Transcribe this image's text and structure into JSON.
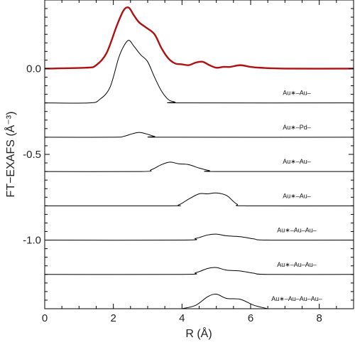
{
  "chart_data": {
    "type": "line",
    "xlabel": "R (Å)",
    "ylabel": "FT−EXAFS (Å⁻³)",
    "xlim": [
      0,
      9
    ],
    "ylim": [
      -1.4,
      0.4
    ],
    "x_ticks": [
      0,
      2,
      4,
      6,
      8
    ],
    "x_tick_labels": [
      "0",
      "2",
      "4",
      "6",
      "8"
    ],
    "y_ticks": [
      0.0,
      -0.5,
      -1.0
    ],
    "y_tick_labels": [
      "0.0",
      "-0.5",
      "-1.0"
    ],
    "grid": false,
    "series": [
      {
        "name": "",
        "color": "#b01010",
        "offset": 0.0,
        "points": [
          [
            0,
            0
          ],
          [
            1.2,
            0.005
          ],
          [
            1.5,
            0.02
          ],
          [
            1.8,
            0.09
          ],
          [
            2.1,
            0.25
          ],
          [
            2.3,
            0.34
          ],
          [
            2.45,
            0.355
          ],
          [
            2.6,
            0.31
          ],
          [
            2.75,
            0.27
          ],
          [
            2.95,
            0.24
          ],
          [
            3.2,
            0.2
          ],
          [
            3.4,
            0.12
          ],
          [
            3.6,
            0.06
          ],
          [
            3.8,
            0.03
          ],
          [
            4.0,
            0.025
          ],
          [
            4.2,
            0.02
          ],
          [
            4.4,
            0.035
          ],
          [
            4.6,
            0.04
          ],
          [
            4.8,
            0.02
          ],
          [
            5.0,
            0.005
          ],
          [
            5.2,
            0.01
          ],
          [
            5.4,
            0.01
          ],
          [
            5.7,
            0.02
          ],
          [
            6.0,
            0.01
          ],
          [
            6.3,
            0.005
          ],
          [
            7.0,
            0.0
          ],
          [
            9,
            0
          ]
        ]
      },
      {
        "name": "Au∗–Au–",
        "color": "#000000",
        "offset": -0.2,
        "points": [
          [
            0,
            0
          ],
          [
            1.3,
            0.0
          ],
          [
            1.6,
            0.02
          ],
          [
            1.9,
            0.09
          ],
          [
            2.15,
            0.26
          ],
          [
            2.3,
            0.33
          ],
          [
            2.45,
            0.365
          ],
          [
            2.6,
            0.33
          ],
          [
            2.8,
            0.28
          ],
          [
            3.0,
            0.24
          ],
          [
            3.2,
            0.15
          ],
          [
            3.4,
            0.07
          ],
          [
            3.6,
            0.02
          ],
          [
            3.8,
            0.005
          ],
          [
            4.0,
            0
          ],
          [
            9,
            0
          ]
        ]
      },
      {
        "name": "Au∗–Pd–",
        "color": "#000000",
        "offset": -0.4,
        "points": [
          [
            0,
            0
          ],
          [
            2.0,
            0.0
          ],
          [
            2.3,
            0.005
          ],
          [
            2.55,
            0.02
          ],
          [
            2.75,
            0.028
          ],
          [
            2.95,
            0.02
          ],
          [
            3.2,
            0.005
          ],
          [
            3.5,
            0
          ],
          [
            9,
            0
          ]
        ]
      },
      {
        "name": "Au∗–Au–",
        "color": "#000000",
        "offset": -0.6,
        "points": [
          [
            0,
            0
          ],
          [
            2.8,
            0.0
          ],
          [
            3.1,
            0.01
          ],
          [
            3.4,
            0.04
          ],
          [
            3.65,
            0.055
          ],
          [
            3.9,
            0.045
          ],
          [
            4.2,
            0.04
          ],
          [
            4.5,
            0.02
          ],
          [
            4.8,
            0.005
          ],
          [
            5.0,
            0
          ],
          [
            9,
            0
          ]
        ]
      },
      {
        "name": "Au∗–Au–",
        "color": "#000000",
        "offset": -0.8,
        "points": [
          [
            0,
            0
          ],
          [
            3.6,
            0.0
          ],
          [
            3.9,
            0.005
          ],
          [
            4.2,
            0.04
          ],
          [
            4.5,
            0.07
          ],
          [
            4.75,
            0.07
          ],
          [
            5.0,
            0.075
          ],
          [
            5.3,
            0.06
          ],
          [
            5.6,
            0.01
          ],
          [
            5.9,
            0.0
          ],
          [
            9,
            0
          ]
        ]
      },
      {
        "name": "Au∗–Au–Au–",
        "color": "#000000",
        "offset": -1.0,
        "points": [
          [
            0,
            0
          ],
          [
            4.0,
            0.0
          ],
          [
            4.4,
            0.01
          ],
          [
            4.75,
            0.03
          ],
          [
            5.0,
            0.035
          ],
          [
            5.3,
            0.025
          ],
          [
            5.7,
            0.02
          ],
          [
            6.1,
            0.007
          ],
          [
            6.5,
            0
          ],
          [
            9,
            0
          ]
        ]
      },
      {
        "name": "Au∗–Au–Au–",
        "color": "#000000",
        "offset": -1.2,
        "points": [
          [
            0,
            0
          ],
          [
            4.0,
            0.0
          ],
          [
            4.4,
            0.01
          ],
          [
            4.75,
            0.035
          ],
          [
            5.0,
            0.04
          ],
          [
            5.3,
            0.025
          ],
          [
            5.7,
            0.02
          ],
          [
            6.1,
            0.007
          ],
          [
            6.5,
            0
          ],
          [
            9,
            0
          ]
        ]
      },
      {
        "name": "Au∗–Au–Au–Au–",
        "color": "#000000",
        "offset": -1.4,
        "points": [
          [
            4.0,
            0.0
          ],
          [
            4.4,
            0.02
          ],
          [
            4.75,
            0.07
          ],
          [
            5.0,
            0.085
          ],
          [
            5.3,
            0.06
          ],
          [
            5.7,
            0.055
          ],
          [
            6.1,
            0.02
          ],
          [
            6.5,
            0.0
          ]
        ]
      }
    ],
    "path_labels": [
      "Au∗–Au–",
      "Au∗–Pd–",
      "Au∗–Au–",
      "Au∗–Au–",
      "Au∗–Au–Au–",
      "Au∗–Au–Au–",
      "Au∗–Au–Au–Au–"
    ]
  }
}
